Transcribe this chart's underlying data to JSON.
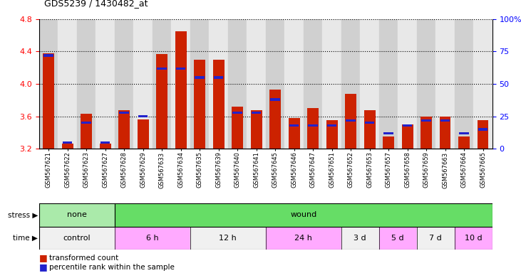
{
  "title": "GDS5239 / 1430482_at",
  "samples": [
    "GSM567621",
    "GSM567622",
    "GSM567623",
    "GSM567627",
    "GSM567628",
    "GSM567629",
    "GSM567633",
    "GSM567634",
    "GSM567635",
    "GSM567639",
    "GSM567640",
    "GSM567641",
    "GSM567645",
    "GSM567646",
    "GSM567647",
    "GSM567651",
    "GSM567652",
    "GSM567653",
    "GSM567657",
    "GSM567658",
    "GSM567659",
    "GSM567663",
    "GSM567664",
    "GSM567665"
  ],
  "transformed_count": [
    4.38,
    3.26,
    3.63,
    3.26,
    3.68,
    3.56,
    4.37,
    4.65,
    4.3,
    4.3,
    3.72,
    3.68,
    3.93,
    3.58,
    3.7,
    3.55,
    3.88,
    3.68,
    3.35,
    3.5,
    3.6,
    3.6,
    3.35,
    3.55
  ],
  "percentile_rank": [
    72,
    5,
    20,
    5,
    28,
    25,
    62,
    62,
    55,
    55,
    28,
    28,
    38,
    18,
    18,
    18,
    22,
    20,
    12,
    18,
    22,
    22,
    12,
    15
  ],
  "stress_groups": [
    {
      "label": "none",
      "start": 0,
      "end": 4,
      "color": "#aaeaaa"
    },
    {
      "label": "wound",
      "start": 4,
      "end": 24,
      "color": "#66dd66"
    }
  ],
  "time_groups": [
    {
      "label": "control",
      "start": 0,
      "end": 4,
      "color": "#f0f0f0"
    },
    {
      "label": "6 h",
      "start": 4,
      "end": 8,
      "color": "#ffaaff"
    },
    {
      "label": "12 h",
      "start": 8,
      "end": 12,
      "color": "#f0f0f0"
    },
    {
      "label": "24 h",
      "start": 12,
      "end": 16,
      "color": "#ffaaff"
    },
    {
      "label": "3 d",
      "start": 16,
      "end": 18,
      "color": "#f0f0f0"
    },
    {
      "label": "5 d",
      "start": 18,
      "end": 20,
      "color": "#ffaaff"
    },
    {
      "label": "7 d",
      "start": 20,
      "end": 22,
      "color": "#f0f0f0"
    },
    {
      "label": "10 d",
      "start": 22,
      "end": 24,
      "color": "#ffaaff"
    }
  ],
  "ylim_left": [
    3.2,
    4.8
  ],
  "ylim_right": [
    0,
    100
  ],
  "yticks_left": [
    3.2,
    3.6,
    4.0,
    4.4,
    4.8
  ],
  "yticks_right": [
    0,
    25,
    50,
    75,
    100
  ],
  "bar_color_red": "#cc2200",
  "bar_color_blue": "#2222cc",
  "base_value": 3.2,
  "background_color": "#ffffff",
  "bar_width": 0.6,
  "col_bg_odd": "#d0d0d0",
  "col_bg_even": "#e8e8e8"
}
